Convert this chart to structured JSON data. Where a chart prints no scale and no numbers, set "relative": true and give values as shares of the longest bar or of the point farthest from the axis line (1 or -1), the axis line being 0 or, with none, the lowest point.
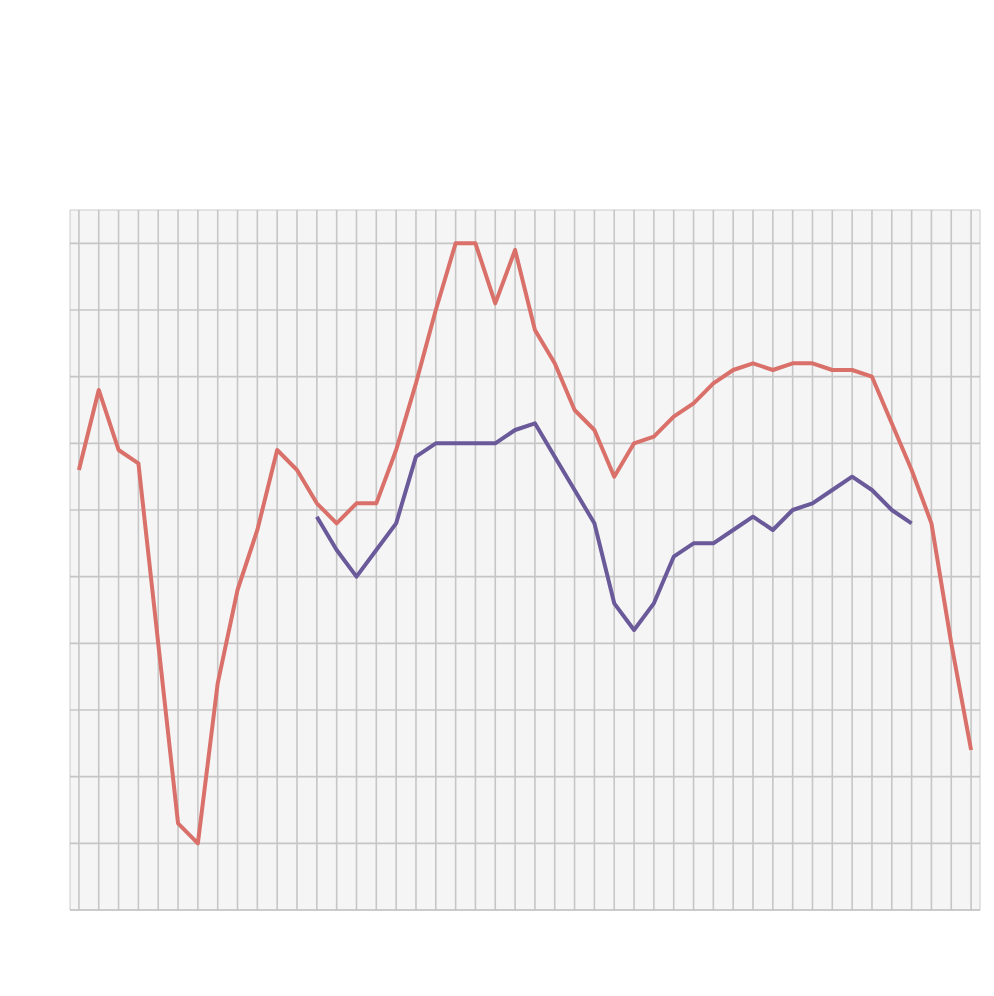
{
  "chart_data": {
    "type": "line",
    "relative": true,
    "grid": true,
    "categories": [
      null,
      null,
      null,
      null,
      null,
      null,
      null,
      null,
      null,
      null,
      null,
      null,
      null,
      null,
      null,
      null,
      null,
      null,
      null,
      null,
      null,
      null,
      null,
      null,
      null,
      null,
      null,
      null,
      null,
      null,
      null,
      null,
      null,
      null,
      null,
      null,
      null,
      null,
      null,
      null,
      null,
      null,
      null,
      null,
      null,
      null
    ],
    "series": [
      {
        "color": "#d9706a",
        "values": [
          0.66,
          0.78,
          0.69,
          0.67,
          0.4,
          0.13,
          0.1,
          0.34,
          0.48,
          0.57,
          0.69,
          0.66,
          0.61,
          0.58,
          0.61,
          0.61,
          0.69,
          0.79,
          0.9,
          1.0,
          1.0,
          0.91,
          0.99,
          0.87,
          0.82,
          0.75,
          0.72,
          0.65,
          0.7,
          0.71,
          0.74,
          0.76,
          0.79,
          0.81,
          0.82,
          0.81,
          0.82,
          0.82,
          0.81,
          0.81,
          0.8,
          0.73,
          0.66,
          0.58,
          0.4,
          0.24
        ]
      },
      {
        "color": "#6a5a9a",
        "values": [
          null,
          null,
          null,
          null,
          null,
          null,
          null,
          null,
          null,
          null,
          null,
          null,
          0.59,
          0.54,
          0.5,
          0.54,
          0.58,
          0.68,
          0.7,
          0.7,
          0.7,
          0.7,
          0.72,
          0.73,
          0.68,
          0.63,
          0.58,
          0.46,
          0.42,
          0.46,
          0.53,
          0.55,
          0.55,
          0.57,
          0.59,
          0.57,
          0.6,
          0.61,
          0.63,
          0.65,
          0.63,
          0.6,
          0.58,
          null,
          null,
          null
        ]
      }
    ]
  }
}
